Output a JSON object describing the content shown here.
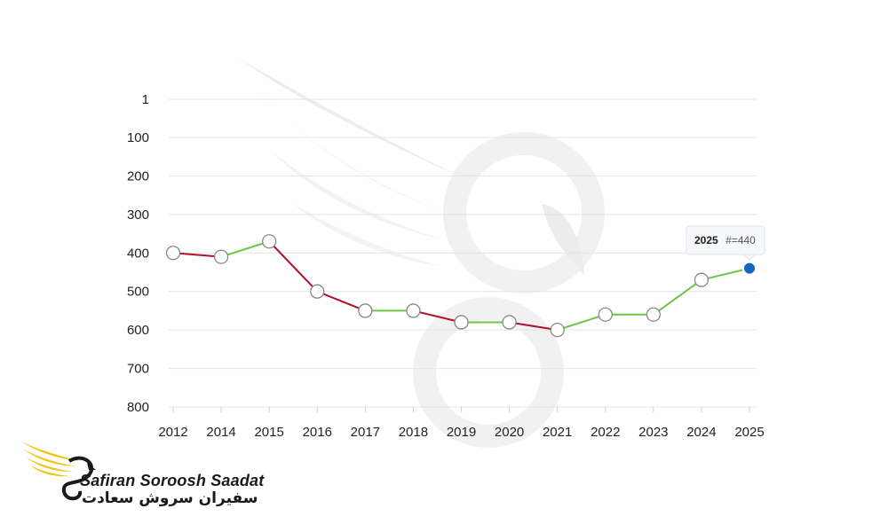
{
  "chart_data": {
    "type": "line",
    "categories": [
      "2012",
      "2014",
      "2015",
      "2016",
      "2017",
      "2018",
      "2019",
      "2020",
      "2021",
      "2022",
      "2023",
      "2024",
      "2025"
    ],
    "series": [
      {
        "values": [
          400,
          410,
          370,
          500,
          550,
          550,
          580,
          580,
          600,
          560,
          560,
          470,
          440
        ]
      }
    ],
    "y_axis": {
      "reversed": true,
      "min": 1,
      "max": 800,
      "ticks": [
        1,
        100,
        200,
        300,
        400,
        500,
        600,
        700,
        800
      ]
    },
    "grid": true,
    "segment_colors": {
      "improving": "#6cc644",
      "worsening": "#b0102c"
    },
    "point_style": {
      "fill": "#ffffff",
      "stroke": "#888888",
      "active_fill": "#1565c0"
    },
    "tooltip": {
      "year": "2025",
      "rest": "#=440"
    }
  },
  "logo": {
    "name_en": "Safiran Soroosh Saadat",
    "name_fa": "سفیران سروش سعادت",
    "colors": {
      "wing": "#f2c100",
      "body": "#1a1a1a"
    }
  }
}
